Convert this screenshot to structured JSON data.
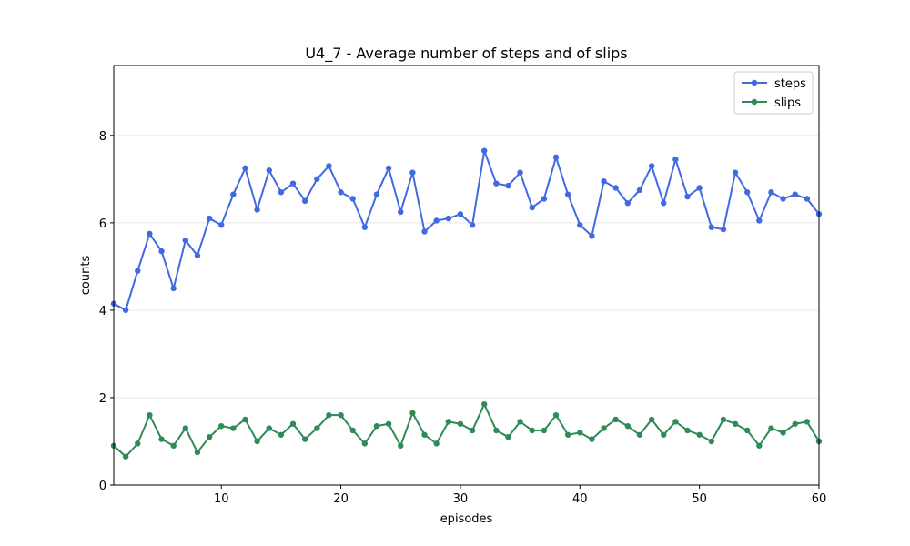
{
  "chart_data": {
    "type": "line",
    "title": "U4_7 - Average number of steps and of slips",
    "xlabel": "episodes",
    "ylabel": "counts",
    "xlim": [
      1,
      60
    ],
    "ylim": [
      0,
      9.6
    ],
    "xticks": [
      10,
      20,
      30,
      40,
      50,
      60
    ],
    "yticks": [
      0,
      2,
      4,
      6,
      8
    ],
    "grid": "horizontal",
    "legend_position": "top-right",
    "x": [
      1,
      2,
      3,
      4,
      5,
      6,
      7,
      8,
      9,
      10,
      11,
      12,
      13,
      14,
      15,
      16,
      17,
      18,
      19,
      20,
      21,
      22,
      23,
      24,
      25,
      26,
      27,
      28,
      29,
      30,
      31,
      32,
      33,
      34,
      35,
      36,
      37,
      38,
      39,
      40,
      41,
      42,
      43,
      44,
      45,
      46,
      47,
      48,
      49,
      50,
      51,
      52,
      53,
      54,
      55,
      56,
      57,
      58,
      59,
      60
    ],
    "series": [
      {
        "name": "steps",
        "color": "#4169e1",
        "values": [
          4.15,
          4.0,
          4.9,
          5.75,
          5.35,
          4.5,
          5.6,
          5.25,
          6.1,
          5.95,
          6.65,
          7.25,
          6.3,
          7.2,
          6.7,
          6.9,
          6.5,
          7.0,
          7.3,
          6.7,
          6.55,
          5.9,
          6.65,
          7.25,
          6.25,
          7.15,
          5.8,
          6.05,
          6.1,
          6.2,
          5.95,
          7.65,
          6.9,
          6.85,
          7.15,
          6.35,
          6.55,
          7.5,
          6.65,
          5.95,
          5.7,
          6.95,
          6.8,
          6.45,
          6.75,
          7.3,
          6.45,
          7.45,
          6.6,
          6.8,
          5.9,
          5.85,
          7.15,
          6.7,
          6.05,
          6.7,
          6.55,
          6.65,
          6.55,
          6.2
        ]
      },
      {
        "name": "slips",
        "color": "#2e8b57",
        "values": [
          0.9,
          0.65,
          0.95,
          1.6,
          1.05,
          0.9,
          1.3,
          0.75,
          1.1,
          1.35,
          1.3,
          1.5,
          1.0,
          1.3,
          1.15,
          1.4,
          1.05,
          1.3,
          1.6,
          1.6,
          1.25,
          0.95,
          1.35,
          1.4,
          0.9,
          1.65,
          1.15,
          0.95,
          1.45,
          1.4,
          1.25,
          1.85,
          1.25,
          1.1,
          1.45,
          1.25,
          1.25,
          1.6,
          1.15,
          1.2,
          1.05,
          1.3,
          1.5,
          1.35,
          1.15,
          1.5,
          1.15,
          1.45,
          1.25,
          1.15,
          1.0,
          1.5,
          1.4,
          1.25,
          0.9,
          1.3,
          1.2,
          1.4,
          1.45,
          1.0
        ]
      }
    ]
  }
}
